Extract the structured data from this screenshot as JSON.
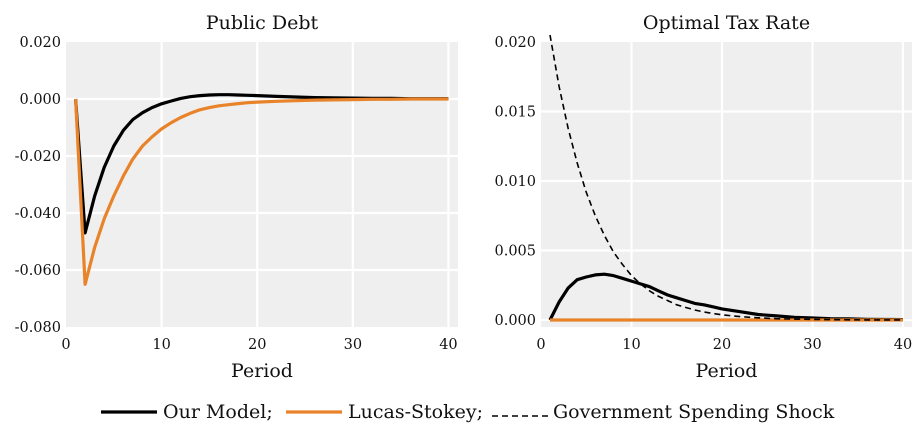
{
  "chart_data": [
    {
      "type": "line",
      "title": "Public Debt",
      "xlabel": "Period",
      "ylabel": "",
      "xlim": [
        0,
        41
      ],
      "ylim": [
        -0.08,
        0.02
      ],
      "xticks": [
        0,
        10,
        20,
        30,
        40
      ],
      "yticks": [
        -0.08,
        -0.06,
        -0.04,
        -0.02,
        0.0,
        0.02
      ],
      "xtick_labels": [
        "0",
        "10",
        "20",
        "30",
        "40"
      ],
      "ytick_labels": [
        "-0.080",
        "-0.060",
        "-0.040",
        "-0.020",
        "0.000",
        "0.020"
      ],
      "grid": true,
      "series": [
        {
          "name": "Our Model",
          "color": "#000000",
          "style": "solid",
          "x": [
            1,
            2,
            3,
            4,
            5,
            6,
            7,
            8,
            9,
            10,
            11,
            12,
            13,
            14,
            15,
            16,
            17,
            18,
            19,
            20,
            22,
            24,
            26,
            28,
            30,
            32,
            34,
            36,
            38,
            40
          ],
          "y": [
            0.0,
            -0.047,
            -0.034,
            -0.024,
            -0.0165,
            -0.011,
            -0.0072,
            -0.0048,
            -0.003,
            -0.0017,
            -0.0007,
            0.0002,
            0.0008,
            0.0012,
            0.0014,
            0.0015,
            0.0015,
            0.0014,
            0.0013,
            0.0012,
            0.0009,
            0.0007,
            0.0005,
            0.0004,
            0.0003,
            0.0002,
            0.0002,
            0.0001,
            0.0001,
            0.0001
          ]
        },
        {
          "name": "Lucas-Stokey",
          "color": "#e8832a",
          "style": "solid",
          "x": [
            1,
            2,
            3,
            4,
            5,
            6,
            7,
            8,
            9,
            10,
            11,
            12,
            13,
            14,
            15,
            16,
            17,
            18,
            19,
            20,
            22,
            24,
            26,
            28,
            30,
            32,
            34,
            36,
            38,
            40
          ],
          "y": [
            0.0,
            -0.065,
            -0.052,
            -0.042,
            -0.034,
            -0.027,
            -0.021,
            -0.0165,
            -0.0133,
            -0.0105,
            -0.0083,
            -0.0065,
            -0.005,
            -0.0038,
            -0.003,
            -0.0024,
            -0.002,
            -0.0016,
            -0.0013,
            -0.0011,
            -0.0008,
            -0.0006,
            -0.0004,
            -0.0003,
            -0.0002,
            -0.0001,
            -0.0001,
            0.0,
            0.0,
            0.0
          ]
        }
      ]
    },
    {
      "type": "line",
      "title": "Optimal Tax Rate",
      "xlabel": "Period",
      "ylabel": "",
      "xlim": [
        0,
        41
      ],
      "ylim": [
        -0.0005,
        0.02
      ],
      "xticks": [
        0,
        10,
        20,
        30,
        40
      ],
      "yticks": [
        0.0,
        0.005,
        0.01,
        0.015,
        0.02
      ],
      "xtick_labels": [
        "0",
        "10",
        "20",
        "30",
        "40"
      ],
      "ytick_labels": [
        "0.000",
        "0.005",
        "0.010",
        "0.015",
        "0.020"
      ],
      "grid": true,
      "series": [
        {
          "name": "Our Model",
          "color": "#000000",
          "style": "solid",
          "x": [
            1,
            2,
            3,
            4,
            5,
            6,
            7,
            8,
            9,
            10,
            11,
            12,
            13,
            14,
            15,
            16,
            17,
            18,
            19,
            20,
            22,
            24,
            26,
            28,
            30,
            32,
            34,
            36,
            38,
            40
          ],
          "y": [
            0.0,
            0.0013,
            0.0023,
            0.0029,
            0.0031,
            0.00325,
            0.0033,
            0.0032,
            0.003,
            0.0028,
            0.0026,
            0.0024,
            0.0021,
            0.0018,
            0.0016,
            0.0014,
            0.0012,
            0.0011,
            0.00095,
            0.0008,
            0.0006,
            0.0004,
            0.0003,
            0.0002,
            0.00015,
            0.0001,
            8e-05,
            5e-05,
            4e-05,
            3e-05
          ]
        },
        {
          "name": "Lucas-Stokey",
          "color": "#e8832a",
          "style": "solid",
          "x": [
            1,
            40
          ],
          "y": [
            0.0,
            0.0
          ]
        },
        {
          "name": "Government Spending Shock",
          "color": "#000000",
          "style": "dashed",
          "x": [
            1,
            2,
            3,
            4,
            5,
            6,
            7,
            8,
            9,
            10,
            11,
            12,
            13,
            14,
            15,
            16,
            17,
            18,
            19,
            20,
            22,
            24,
            26,
            28,
            30,
            32,
            34,
            36,
            38,
            40
          ],
          "y": [
            0.0205,
            0.0168,
            0.0138,
            0.0113,
            0.0092,
            0.0075,
            0.0061,
            0.0049,
            0.004,
            0.0032,
            0.0026,
            0.0021,
            0.0017,
            0.0014,
            0.0011,
            0.0009,
            0.00072,
            0.00058,
            0.00047,
            0.00038,
            0.00025,
            0.00016,
            0.0001,
            7e-05,
            5e-05,
            3e-05,
            2e-05,
            1e-05,
            1e-05,
            0.0
          ]
        }
      ]
    }
  ],
  "legend": {
    "placement": "bottom",
    "entries": [
      "Our Model;",
      "Lucas-Stokey;",
      "Government Spending Shock"
    ]
  }
}
